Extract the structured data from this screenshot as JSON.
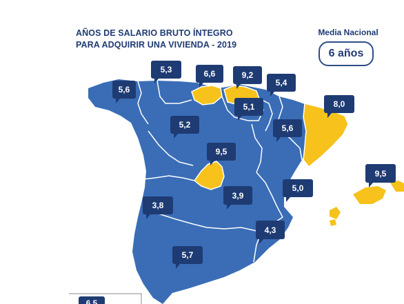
{
  "title_line1": "AÑOS DE SALARIO BRUTO ÍNTEGRO",
  "title_line2": "PARA ADQUIRIR UNA VIVIENDA - 2019",
  "media_label": "Media Nacional",
  "media_value": "6 años",
  "colors": {
    "region": "#3a6db6",
    "highlight": "#f6c21b",
    "badge": "#1f3b73",
    "border": "#ffffff"
  },
  "regions": {
    "galicia": "5,6",
    "asturias": "5,3",
    "cantabria": "6,6",
    "pais_vasco": "9,2",
    "navarra": "5,4",
    "la_rioja": "5,1",
    "castilla_leon": "5,2",
    "aragon": "5,6",
    "cataluna": "8,0",
    "madrid": "9,5",
    "baleares": "9,5",
    "comunidad_valenciana": "5,0",
    "extremadura": "3,8",
    "castilla_la_mancha": "3,9",
    "murcia": "4,3",
    "andalucia": "5,7",
    "canarias": "6,5"
  }
}
